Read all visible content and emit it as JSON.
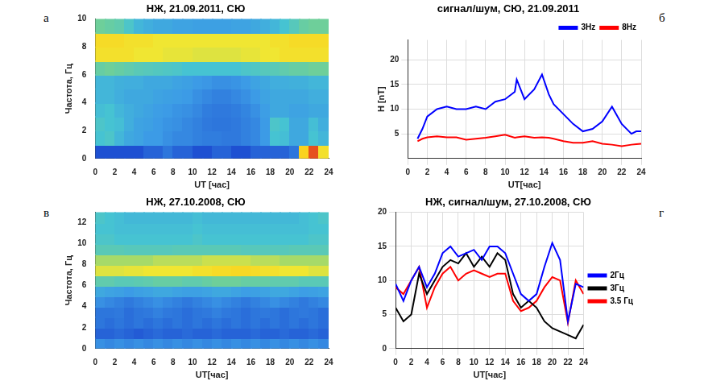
{
  "chart_data": [
    {
      "type": "heatmap",
      "panel_letter": "а",
      "title": "НЖ, 21.09.2011, СЮ",
      "x_label": "UT [час]",
      "y_label": "Частота, Гц",
      "xlim": [
        0,
        24
      ],
      "xticks": [
        0,
        2,
        4,
        6,
        8,
        10,
        12,
        14,
        16,
        18,
        20,
        22,
        24
      ],
      "ylim": [
        0,
        10
      ],
      "yticks": [
        0,
        2,
        4,
        6,
        8,
        10
      ],
      "grid": false,
      "x": [
        0.5,
        1.5,
        2.5,
        3.5,
        4.5,
        5.5,
        6.5,
        7.5,
        8.5,
        9.5,
        10.5,
        11.5,
        12.5,
        13.5,
        14.5,
        15.5,
        16.5,
        17.5,
        18.5,
        19.5,
        20.5,
        21.5,
        22.5,
        23.5
      ],
      "y": [
        0.5,
        1.5,
        2.5,
        3.5,
        4.5,
        5.5,
        6.5,
        7.5,
        8.5,
        9.5
      ],
      "cells": [
        [
          0.25,
          0.25,
          0.25,
          0.25,
          0.25,
          0.3,
          0.3,
          0.35,
          0.3,
          0.3,
          0.25,
          0.25,
          0.3,
          0.3,
          0.25,
          0.25,
          0.3,
          0.3,
          0.3,
          0.3,
          0.35,
          0.95,
          1.0,
          0.9
        ],
        [
          0.6,
          0.62,
          0.55,
          0.5,
          0.48,
          0.45,
          0.45,
          0.42,
          0.4,
          0.4,
          0.38,
          0.37,
          0.37,
          0.36,
          0.36,
          0.38,
          0.4,
          0.45,
          0.6,
          0.58,
          0.5,
          0.5,
          0.6,
          0.55
        ],
        [
          0.62,
          0.6,
          0.58,
          0.52,
          0.48,
          0.47,
          0.45,
          0.43,
          0.42,
          0.4,
          0.38,
          0.36,
          0.35,
          0.35,
          0.36,
          0.38,
          0.4,
          0.45,
          0.62,
          0.6,
          0.5,
          0.5,
          0.58,
          0.52
        ],
        [
          0.58,
          0.6,
          0.55,
          0.52,
          0.5,
          0.48,
          0.46,
          0.45,
          0.43,
          0.42,
          0.4,
          0.37,
          0.36,
          0.36,
          0.37,
          0.39,
          0.42,
          0.46,
          0.5,
          0.5,
          0.48,
          0.48,
          0.5,
          0.5
        ],
        [
          0.55,
          0.55,
          0.52,
          0.5,
          0.5,
          0.5,
          0.48,
          0.47,
          0.46,
          0.45,
          0.42,
          0.4,
          0.38,
          0.38,
          0.4,
          0.42,
          0.45,
          0.48,
          0.5,
          0.5,
          0.5,
          0.5,
          0.52,
          0.52
        ],
        [
          0.55,
          0.55,
          0.53,
          0.52,
          0.52,
          0.5,
          0.5,
          0.5,
          0.48,
          0.47,
          0.45,
          0.44,
          0.42,
          0.42,
          0.43,
          0.45,
          0.48,
          0.5,
          0.52,
          0.52,
          0.53,
          0.53,
          0.55,
          0.55
        ],
        [
          0.7,
          0.72,
          0.7,
          0.68,
          0.66,
          0.65,
          0.64,
          0.63,
          0.62,
          0.6,
          0.6,
          0.6,
          0.6,
          0.6,
          0.6,
          0.62,
          0.63,
          0.65,
          0.66,
          0.68,
          0.7,
          0.7,
          0.72,
          0.72
        ],
        [
          0.9,
          0.9,
          0.9,
          0.9,
          0.88,
          0.88,
          0.88,
          0.87,
          0.87,
          0.87,
          0.86,
          0.86,
          0.86,
          0.86,
          0.86,
          0.87,
          0.87,
          0.88,
          0.88,
          0.9,
          0.9,
          0.9,
          0.9,
          0.9
        ],
        [
          0.92,
          0.92,
          0.92,
          0.9,
          0.9,
          0.9,
          0.88,
          0.88,
          0.88,
          0.88,
          0.88,
          0.88,
          0.88,
          0.88,
          0.88,
          0.88,
          0.88,
          0.88,
          0.9,
          0.9,
          0.92,
          0.92,
          0.92,
          0.92
        ],
        [
          0.72,
          0.7,
          0.68,
          0.62,
          0.55,
          0.52,
          0.5,
          0.5,
          0.48,
          0.48,
          0.47,
          0.47,
          0.47,
          0.47,
          0.48,
          0.48,
          0.5,
          0.52,
          0.55,
          0.6,
          0.65,
          0.7,
          0.72,
          0.72
        ]
      ]
    },
    {
      "type": "heatmap",
      "panel_letter": "в",
      "title": "НЖ, 27.10.2008, СЮ",
      "x_label": "UT[час]",
      "y_label": "Частота, Гц",
      "xlim": [
        0,
        24
      ],
      "xticks": [
        0,
        2,
        4,
        6,
        8,
        10,
        12,
        14,
        16,
        18,
        20,
        22,
        24
      ],
      "ylim": [
        0,
        13
      ],
      "yticks": [
        0,
        2,
        4,
        6,
        8,
        10,
        12
      ],
      "grid": false,
      "x": [
        0.5,
        1.5,
        2.5,
        3.5,
        4.5,
        5.5,
        6.5,
        7.5,
        8.5,
        9.5,
        10.5,
        11.5,
        12.5,
        13.5,
        14.5,
        15.5,
        16.5,
        17.5,
        18.5,
        19.5,
        20.5,
        21.5,
        22.5,
        23.5
      ],
      "y": [
        0.5,
        1.5,
        2.5,
        3.5,
        4.5,
        5.5,
        6.5,
        7.5,
        8.5,
        9.5,
        10.5,
        11.5,
        12.5
      ],
      "cells": [
        [
          0.42,
          0.4,
          0.42,
          0.4,
          0.42,
          0.4,
          0.42,
          0.4,
          0.42,
          0.4,
          0.42,
          0.4,
          0.42,
          0.4,
          0.42,
          0.4,
          0.42,
          0.4,
          0.42,
          0.4,
          0.42,
          0.4,
          0.42,
          0.4
        ],
        [
          0.3,
          0.3,
          0.32,
          0.3,
          0.28,
          0.3,
          0.32,
          0.3,
          0.3,
          0.32,
          0.3,
          0.3,
          0.32,
          0.3,
          0.3,
          0.3,
          0.32,
          0.3,
          0.3,
          0.32,
          0.3,
          0.3,
          0.32,
          0.3
        ],
        [
          0.35,
          0.33,
          0.35,
          0.33,
          0.35,
          0.33,
          0.35,
          0.33,
          0.35,
          0.33,
          0.35,
          0.33,
          0.35,
          0.33,
          0.35,
          0.33,
          0.35,
          0.33,
          0.35,
          0.33,
          0.35,
          0.33,
          0.35,
          0.33
        ],
        [
          0.35,
          0.35,
          0.36,
          0.33,
          0.35,
          0.36,
          0.38,
          0.36,
          0.35,
          0.33,
          0.35,
          0.36,
          0.38,
          0.36,
          0.35,
          0.33,
          0.35,
          0.36,
          0.35,
          0.33,
          0.35,
          0.36,
          0.35,
          0.33
        ],
        [
          0.42,
          0.4,
          0.38,
          0.36,
          0.38,
          0.4,
          0.42,
          0.4,
          0.38,
          0.36,
          0.38,
          0.4,
          0.42,
          0.4,
          0.38,
          0.36,
          0.38,
          0.4,
          0.42,
          0.4,
          0.38,
          0.36,
          0.38,
          0.4
        ],
        [
          0.5,
          0.48,
          0.47,
          0.45,
          0.47,
          0.48,
          0.5,
          0.5,
          0.48,
          0.47,
          0.47,
          0.48,
          0.5,
          0.5,
          0.48,
          0.46,
          0.47,
          0.48,
          0.5,
          0.5,
          0.48,
          0.46,
          0.47,
          0.48
        ],
        [
          0.68,
          0.68,
          0.66,
          0.66,
          0.67,
          0.68,
          0.7,
          0.7,
          0.7,
          0.68,
          0.68,
          0.7,
          0.72,
          0.72,
          0.72,
          0.7,
          0.7,
          0.7,
          0.68,
          0.68,
          0.68,
          0.66,
          0.66,
          0.66
        ],
        [
          0.86,
          0.86,
          0.86,
          0.87,
          0.87,
          0.88,
          0.88,
          0.88,
          0.88,
          0.88,
          0.9,
          0.9,
          0.92,
          0.92,
          0.93,
          0.93,
          0.92,
          0.9,
          0.9,
          0.88,
          0.88,
          0.88,
          0.86,
          0.86
        ],
        [
          0.8,
          0.8,
          0.8,
          0.8,
          0.8,
          0.8,
          0.82,
          0.82,
          0.82,
          0.82,
          0.82,
          0.84,
          0.84,
          0.84,
          0.84,
          0.84,
          0.82,
          0.82,
          0.82,
          0.8,
          0.8,
          0.8,
          0.8,
          0.8
        ],
        [
          0.66,
          0.66,
          0.66,
          0.65,
          0.65,
          0.65,
          0.65,
          0.65,
          0.66,
          0.66,
          0.66,
          0.66,
          0.66,
          0.66,
          0.66,
          0.65,
          0.65,
          0.65,
          0.65,
          0.65,
          0.66,
          0.66,
          0.66,
          0.66
        ],
        [
          0.62,
          0.62,
          0.6,
          0.6,
          0.6,
          0.6,
          0.6,
          0.6,
          0.6,
          0.6,
          0.62,
          0.6,
          0.6,
          0.6,
          0.6,
          0.6,
          0.6,
          0.6,
          0.6,
          0.6,
          0.6,
          0.6,
          0.62,
          0.62
        ],
        [
          0.6,
          0.6,
          0.58,
          0.58,
          0.58,
          0.58,
          0.58,
          0.58,
          0.58,
          0.58,
          0.6,
          0.58,
          0.58,
          0.58,
          0.58,
          0.58,
          0.58,
          0.58,
          0.58,
          0.58,
          0.58,
          0.58,
          0.6,
          0.6
        ],
        [
          0.62,
          0.6,
          0.58,
          0.56,
          0.56,
          0.56,
          0.56,
          0.56,
          0.56,
          0.56,
          0.58,
          0.56,
          0.56,
          0.56,
          0.56,
          0.56,
          0.56,
          0.56,
          0.56,
          0.56,
          0.56,
          0.58,
          0.6,
          0.62
        ]
      ]
    },
    {
      "type": "line",
      "panel_letter": "б",
      "title": "сигнал/шум, СЮ, 21.09.2011",
      "x_label": "UT[час]",
      "y_label": "H [nT]",
      "xlim": [
        0,
        24
      ],
      "xticks": [
        0,
        2,
        4,
        6,
        8,
        10,
        12,
        14,
        16,
        18,
        20,
        22,
        24
      ],
      "ylim": [
        0,
        24
      ],
      "yticks": [
        5,
        10,
        15,
        20
      ],
      "grid": true,
      "legend": "top",
      "x": [
        1,
        1.5,
        2,
        3,
        4,
        5,
        6,
        7,
        8,
        9,
        10,
        11,
        11.2,
        12,
        13,
        13.8,
        14.5,
        15,
        16,
        17,
        18,
        19,
        20,
        21,
        22,
        23,
        23.5,
        24
      ],
      "series": [
        {
          "name": "3Hz",
          "color": "#0000ff",
          "values": [
            4,
            6,
            8.5,
            10,
            10.5,
            10,
            10,
            10.5,
            10,
            11.5,
            12,
            13.5,
            16,
            12,
            14,
            17,
            13,
            11,
            9,
            7,
            5.5,
            6,
            7.5,
            10.5,
            7,
            5,
            5.5,
            5.5
          ]
        },
        {
          "name": "8Hz",
          "color": "#ff0000",
          "values": [
            3.5,
            4,
            4.3,
            4.5,
            4.3,
            4.3,
            3.8,
            4,
            4.2,
            4.5,
            4.8,
            4.2,
            4.3,
            4.5,
            4.2,
            4.3,
            4.2,
            4,
            3.5,
            3.2,
            3.2,
            3.5,
            3,
            2.8,
            2.5,
            2.8,
            2.9,
            3
          ]
        }
      ]
    },
    {
      "type": "line",
      "panel_letter": "г",
      "title": "НЖ, сигнал/шум, 27.10.2008, СЮ",
      "x_label": "UT[час]",
      "xlim": [
        0,
        24
      ],
      "xticks": [
        0,
        2,
        4,
        6,
        8,
        10,
        12,
        14,
        16,
        18,
        20,
        22,
        24
      ],
      "ylim": [
        0,
        20
      ],
      "yticks": [
        0,
        5,
        10,
        15,
        20
      ],
      "grid": true,
      "legend": "right",
      "x": [
        0,
        1,
        2,
        3,
        4,
        5,
        6,
        7,
        8,
        9,
        10,
        11,
        12,
        13,
        14,
        15,
        16,
        17,
        18,
        19,
        20,
        21,
        22,
        23,
        24
      ],
      "series": [
        {
          "name": "2Гц",
          "color": "#0000ff",
          "values": [
            9.5,
            7,
            10,
            12,
            9,
            11,
            14,
            15,
            13.5,
            14,
            14.5,
            13,
            15,
            15,
            14,
            11,
            8,
            7,
            8,
            12,
            15.5,
            13,
            4,
            9.5,
            9
          ]
        },
        {
          "name": "3Гц",
          "color": "#000000",
          "values": [
            6,
            4,
            5,
            11,
            8,
            10,
            12,
            13,
            12.5,
            14,
            12,
            13.5,
            12,
            14,
            13,
            8,
            6,
            7,
            6,
            4,
            3,
            2.5,
            2,
            1.5,
            3.5
          ]
        },
        {
          "name": "3.5 Гц",
          "color": "#ff0000",
          "values": [
            9,
            8,
            10,
            12,
            6,
            9,
            11,
            12,
            10,
            11,
            11.5,
            11,
            10.5,
            11,
            11,
            7,
            5.5,
            6,
            7,
            9,
            10.5,
            10,
            3.8,
            10,
            8
          ]
        }
      ]
    }
  ]
}
